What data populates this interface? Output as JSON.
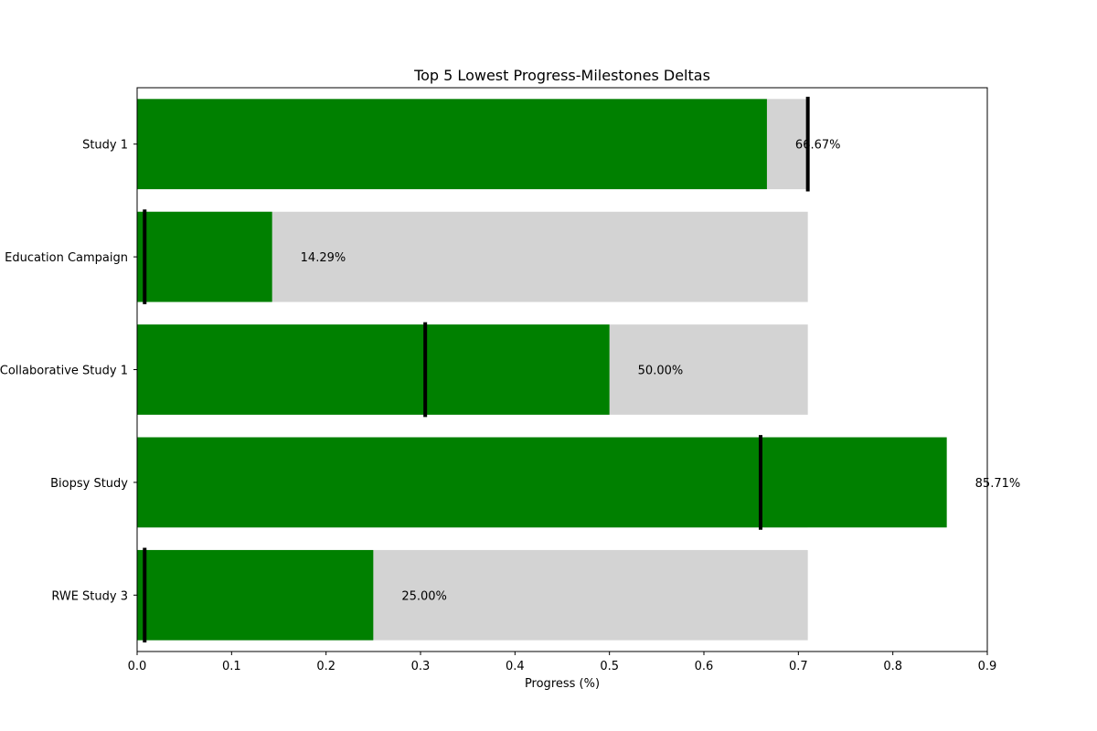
{
  "chart_data": {
    "type": "bar",
    "orientation": "horizontal",
    "title": "Top 5 Lowest Progress-Milestones Deltas",
    "xlabel": "Progress (%)",
    "ylabel": "",
    "xlim": [
      0,
      0.9
    ],
    "xticks": [
      "0.0",
      "0.1",
      "0.2",
      "0.3",
      "0.4",
      "0.5",
      "0.6",
      "0.7",
      "0.8",
      "0.9"
    ],
    "categories": [
      "Study 1",
      "Education Campaign",
      "Collaborative Study 1",
      "Biopsy Study",
      "RWE Study 3"
    ],
    "series": [
      {
        "values": [
          0.6667,
          0.1429,
          0.5,
          0.8571,
          0.25
        ],
        "color": "#008000"
      },
      {
        "values": [
          0.71,
          0.71,
          0.71,
          0.71,
          0.71
        ],
        "color": "#d3d3d3"
      }
    ],
    "markers": {
      "values": [
        0.71,
        0.008,
        0.305,
        0.66,
        0.008
      ],
      "color": "#000000"
    },
    "data_labels": [
      "66.67%",
      "14.29%",
      "50.00%",
      "85.71%",
      "25.00%"
    ],
    "grid": false,
    "legend": false
  }
}
